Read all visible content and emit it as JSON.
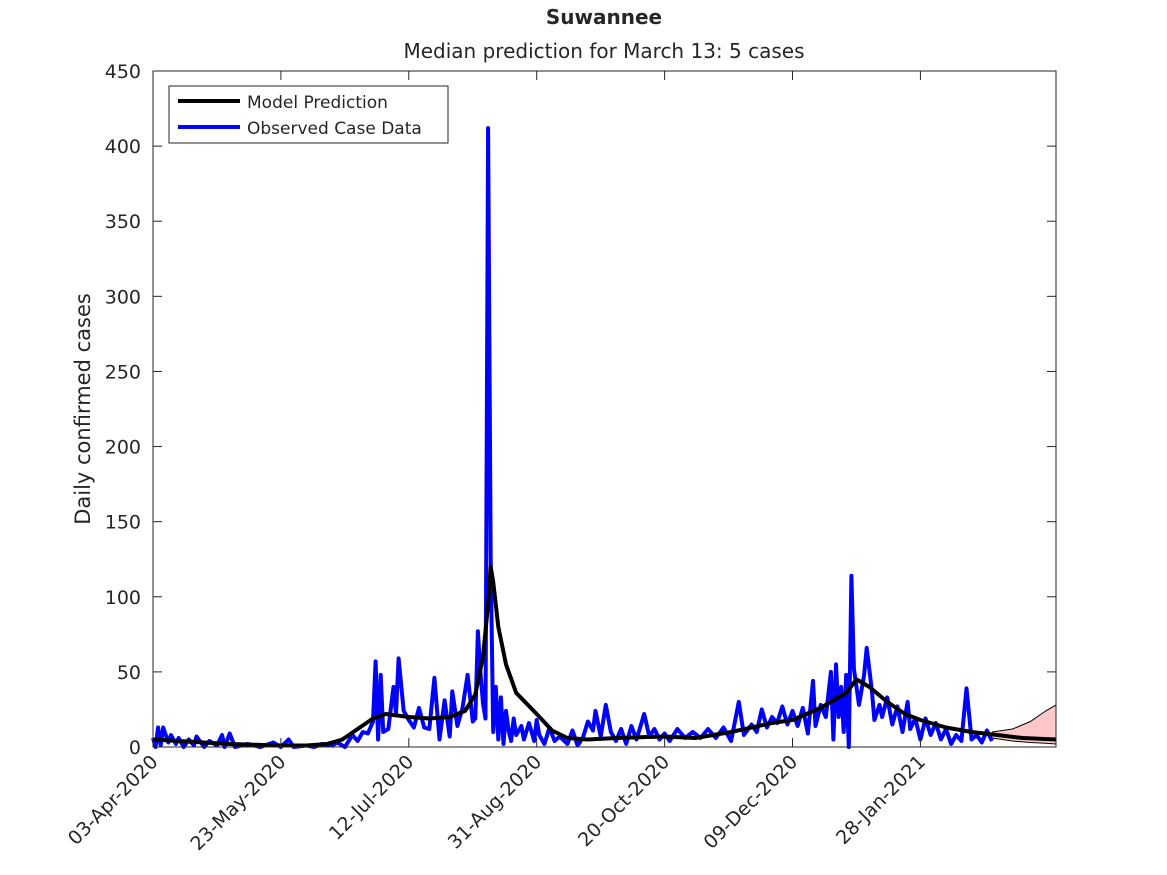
{
  "chart_data": {
    "type": "line",
    "title": "Suwannee",
    "subtitle": "Median prediction for March 13: 5 cases",
    "xlabel": "",
    "ylabel": "Daily confirmed cases",
    "ylim": [
      0,
      450
    ],
    "yticks": [
      0,
      50,
      100,
      150,
      200,
      250,
      300,
      350,
      400,
      450
    ],
    "xlim": [
      "2020-04-03",
      "2021-03-22"
    ],
    "xticks": [
      "03-Apr-2020",
      "23-May-2020",
      "12-Jul-2020",
      "31-Aug-2020",
      "20-Oct-2020",
      "09-Dec-2020",
      "28-Jan-2021"
    ],
    "xtick_dates": [
      "2020-04-03",
      "2020-05-23",
      "2020-07-12",
      "2020-08-31",
      "2020-10-20",
      "2020-12-09",
      "2021-01-28"
    ],
    "grid": false,
    "legend_position": "top-left",
    "colors": {
      "model": "#000000",
      "observed": "#0000ff",
      "band_fill": "#ffc8c8",
      "axis": "#262626"
    },
    "series": [
      {
        "name": "Model Prediction",
        "points": [
          [
            "2020-04-03",
            5
          ],
          [
            "2020-04-13",
            4
          ],
          [
            "2020-04-23",
            3
          ],
          [
            "2020-05-03",
            2
          ],
          [
            "2020-05-13",
            1.5
          ],
          [
            "2020-05-23",
            1
          ],
          [
            "2020-06-02",
            1
          ],
          [
            "2020-06-10",
            2
          ],
          [
            "2020-06-16",
            5
          ],
          [
            "2020-06-22",
            12
          ],
          [
            "2020-06-28",
            19
          ],
          [
            "2020-07-03",
            22
          ],
          [
            "2020-07-12",
            20
          ],
          [
            "2020-07-20",
            19
          ],
          [
            "2020-07-28",
            20
          ],
          [
            "2020-08-03",
            24
          ],
          [
            "2020-08-07",
            35
          ],
          [
            "2020-08-10",
            60
          ],
          [
            "2020-08-12",
            95
          ],
          [
            "2020-08-13",
            120
          ],
          [
            "2020-08-14",
            110
          ],
          [
            "2020-08-16",
            80
          ],
          [
            "2020-08-19",
            55
          ],
          [
            "2020-08-23",
            36
          ],
          [
            "2020-08-31",
            22
          ],
          [
            "2020-09-06",
            11
          ],
          [
            "2020-09-12",
            6
          ],
          [
            "2020-09-20",
            5
          ],
          [
            "2020-10-01",
            6
          ],
          [
            "2020-10-20",
            7
          ],
          [
            "2020-11-01",
            6
          ],
          [
            "2020-11-15",
            10
          ],
          [
            "2020-12-01",
            16
          ],
          [
            "2020-12-09",
            18
          ],
          [
            "2020-12-20",
            26
          ],
          [
            "2020-12-30",
            36
          ],
          [
            "2021-01-03",
            45
          ],
          [
            "2021-01-08",
            40
          ],
          [
            "2021-01-15",
            30
          ],
          [
            "2021-01-22",
            22
          ],
          [
            "2021-01-28",
            18
          ],
          [
            "2021-02-07",
            13
          ],
          [
            "2021-02-17",
            10
          ],
          [
            "2021-02-27",
            8
          ],
          [
            "2021-03-09",
            6
          ],
          [
            "2021-03-22",
            5
          ]
        ]
      },
      {
        "name": "Observed Case Data",
        "points": [
          [
            "2020-04-03",
            6
          ],
          [
            "2020-04-04",
            0
          ],
          [
            "2020-04-05",
            13
          ],
          [
            "2020-04-06",
            1
          ],
          [
            "2020-04-07",
            13
          ],
          [
            "2020-04-09",
            3
          ],
          [
            "2020-04-10",
            8
          ],
          [
            "2020-04-12",
            2
          ],
          [
            "2020-04-13",
            6
          ],
          [
            "2020-04-15",
            0
          ],
          [
            "2020-04-17",
            5
          ],
          [
            "2020-04-19",
            1
          ],
          [
            "2020-04-20",
            7
          ],
          [
            "2020-04-23",
            0
          ],
          [
            "2020-04-25",
            4
          ],
          [
            "2020-04-28",
            1
          ],
          [
            "2020-04-30",
            8
          ],
          [
            "2020-05-01",
            0
          ],
          [
            "2020-05-03",
            9
          ],
          [
            "2020-05-05",
            0
          ],
          [
            "2020-05-10",
            2
          ],
          [
            "2020-05-15",
            0
          ],
          [
            "2020-05-20",
            3
          ],
          [
            "2020-05-23",
            0
          ],
          [
            "2020-05-26",
            5
          ],
          [
            "2020-05-28",
            0
          ],
          [
            "2020-06-02",
            1
          ],
          [
            "2020-06-05",
            0
          ],
          [
            "2020-06-08",
            2
          ],
          [
            "2020-06-12",
            1
          ],
          [
            "2020-06-14",
            3
          ],
          [
            "2020-06-17",
            0
          ],
          [
            "2020-06-20",
            8
          ],
          [
            "2020-06-22",
            4
          ],
          [
            "2020-06-24",
            10
          ],
          [
            "2020-06-26",
            9
          ],
          [
            "2020-06-28",
            17
          ],
          [
            "2020-06-29",
            57
          ],
          [
            "2020-06-30",
            5
          ],
          [
            "2020-07-01",
            48
          ],
          [
            "2020-07-02",
            10
          ],
          [
            "2020-07-04",
            12
          ],
          [
            "2020-07-06",
            40
          ],
          [
            "2020-07-07",
            22
          ],
          [
            "2020-07-08",
            59
          ],
          [
            "2020-07-10",
            24
          ],
          [
            "2020-07-12",
            18
          ],
          [
            "2020-07-14",
            13
          ],
          [
            "2020-07-16",
            26
          ],
          [
            "2020-07-18",
            13
          ],
          [
            "2020-07-20",
            12
          ],
          [
            "2020-07-22",
            46
          ],
          [
            "2020-07-24",
            5
          ],
          [
            "2020-07-26",
            31
          ],
          [
            "2020-07-28",
            7
          ],
          [
            "2020-07-29",
            37
          ],
          [
            "2020-07-31",
            14
          ],
          [
            "2020-08-02",
            26
          ],
          [
            "2020-08-04",
            48
          ],
          [
            "2020-08-06",
            17
          ],
          [
            "2020-08-07",
            19
          ],
          [
            "2020-08-08",
            77
          ],
          [
            "2020-08-09",
            50
          ],
          [
            "2020-08-10",
            29
          ],
          [
            "2020-08-11",
            19
          ],
          [
            "2020-08-12",
            412
          ],
          [
            "2020-08-13",
            124
          ],
          [
            "2020-08-14",
            10
          ],
          [
            "2020-08-15",
            40
          ],
          [
            "2020-08-16",
            5
          ],
          [
            "2020-08-17",
            33
          ],
          [
            "2020-08-18",
            2
          ],
          [
            "2020-08-19",
            24
          ],
          [
            "2020-08-20",
            11
          ],
          [
            "2020-08-21",
            4
          ],
          [
            "2020-08-22",
            19
          ],
          [
            "2020-08-23",
            8
          ],
          [
            "2020-08-25",
            14
          ],
          [
            "2020-08-26",
            5
          ],
          [
            "2020-08-28",
            16
          ],
          [
            "2020-08-30",
            4
          ],
          [
            "2020-08-31",
            18
          ],
          [
            "2020-09-01",
            8
          ],
          [
            "2020-09-03",
            2
          ],
          [
            "2020-09-05",
            13
          ],
          [
            "2020-09-07",
            4
          ],
          [
            "2020-09-09",
            7
          ],
          [
            "2020-09-12",
            2
          ],
          [
            "2020-09-14",
            11
          ],
          [
            "2020-09-16",
            1
          ],
          [
            "2020-09-18",
            6
          ],
          [
            "2020-09-20",
            17
          ],
          [
            "2020-09-22",
            11
          ],
          [
            "2020-09-23",
            24
          ],
          [
            "2020-09-25",
            7
          ],
          [
            "2020-09-27",
            28
          ],
          [
            "2020-09-29",
            10
          ],
          [
            "2020-10-01",
            4
          ],
          [
            "2020-10-03",
            12
          ],
          [
            "2020-10-05",
            2
          ],
          [
            "2020-10-07",
            14
          ],
          [
            "2020-10-09",
            5
          ],
          [
            "2020-10-12",
            22
          ],
          [
            "2020-10-14",
            7
          ],
          [
            "2020-10-16",
            12
          ],
          [
            "2020-10-18",
            5
          ],
          [
            "2020-10-20",
            9
          ],
          [
            "2020-10-22",
            4
          ],
          [
            "2020-10-25",
            12
          ],
          [
            "2020-10-28",
            6
          ],
          [
            "2020-10-31",
            10
          ],
          [
            "2020-11-03",
            6
          ],
          [
            "2020-11-06",
            12
          ],
          [
            "2020-11-09",
            6
          ],
          [
            "2020-11-12",
            13
          ],
          [
            "2020-11-15",
            4
          ],
          [
            "2020-11-18",
            30
          ],
          [
            "2020-11-20",
            8
          ],
          [
            "2020-11-23",
            15
          ],
          [
            "2020-11-25",
            10
          ],
          [
            "2020-11-27",
            25
          ],
          [
            "2020-11-29",
            13
          ],
          [
            "2020-12-01",
            20
          ],
          [
            "2020-12-03",
            16
          ],
          [
            "2020-12-05",
            27
          ],
          [
            "2020-12-07",
            15
          ],
          [
            "2020-12-09",
            24
          ],
          [
            "2020-12-11",
            14
          ],
          [
            "2020-12-13",
            26
          ],
          [
            "2020-12-15",
            9
          ],
          [
            "2020-12-17",
            44
          ],
          [
            "2020-12-18",
            14
          ],
          [
            "2020-12-20",
            28
          ],
          [
            "2020-12-22",
            20
          ],
          [
            "2020-12-24",
            50
          ],
          [
            "2020-12-25",
            5
          ],
          [
            "2020-12-26",
            55
          ],
          [
            "2020-12-27",
            20
          ],
          [
            "2020-12-28",
            40
          ],
          [
            "2020-12-29",
            10
          ],
          [
            "2020-12-30",
            48
          ],
          [
            "2020-12-31",
            0
          ],
          [
            "2021-01-01",
            114
          ],
          [
            "2021-01-02",
            52
          ],
          [
            "2021-01-03",
            40
          ],
          [
            "2021-01-04",
            28
          ],
          [
            "2021-01-06",
            48
          ],
          [
            "2021-01-07",
            66
          ],
          [
            "2021-01-09",
            38
          ],
          [
            "2021-01-10",
            18
          ],
          [
            "2021-01-12",
            28
          ],
          [
            "2021-01-13",
            20
          ],
          [
            "2021-01-15",
            33
          ],
          [
            "2021-01-17",
            15
          ],
          [
            "2021-01-19",
            27
          ],
          [
            "2021-01-21",
            10
          ],
          [
            "2021-01-23",
            30
          ],
          [
            "2021-01-24",
            12
          ],
          [
            "2021-01-26",
            19
          ],
          [
            "2021-01-28",
            5
          ],
          [
            "2021-01-30",
            19
          ],
          [
            "2021-02-01",
            8
          ],
          [
            "2021-02-03",
            16
          ],
          [
            "2021-02-05",
            5
          ],
          [
            "2021-02-07",
            12
          ],
          [
            "2021-02-09",
            2
          ],
          [
            "2021-02-11",
            8
          ],
          [
            "2021-02-13",
            4
          ],
          [
            "2021-02-15",
            39
          ],
          [
            "2021-02-17",
            5
          ],
          [
            "2021-02-19",
            8
          ],
          [
            "2021-02-21",
            3
          ],
          [
            "2021-02-23",
            11
          ],
          [
            "2021-02-25",
            4
          ]
        ]
      }
    ],
    "prediction_band": {
      "upper": [
        [
          "2021-02-25",
          10
        ],
        [
          "2021-03-05",
          12
        ],
        [
          "2021-03-12",
          17
        ],
        [
          "2021-03-18",
          24
        ],
        [
          "2021-03-22",
          28
        ]
      ],
      "lower": [
        [
          "2021-02-25",
          6
        ],
        [
          "2021-03-05",
          4
        ],
        [
          "2021-03-12",
          3
        ],
        [
          "2021-03-18",
          2.5
        ],
        [
          "2021-03-22",
          2
        ]
      ]
    }
  }
}
